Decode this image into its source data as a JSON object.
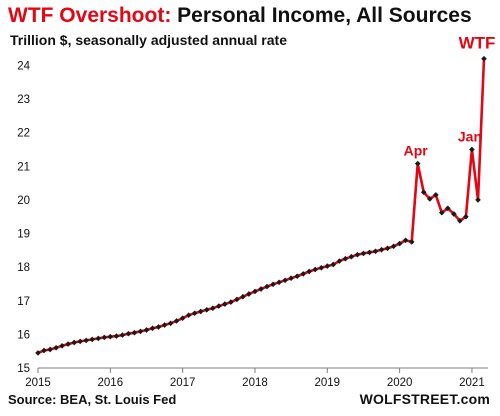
{
  "header": {
    "title_accent": "WTF Overshoot:",
    "title_rest": " Personal Income, All Sources",
    "subtitle": "Trillion $, seasonally adjusted annual rate"
  },
  "footer": {
    "source": "Source: BEA, St. Louis Fed",
    "brand": "WOLFSTREET.com"
  },
  "colors": {
    "accent": "#e30613",
    "line": "#e30613",
    "markers": "#1a1a1a",
    "grid": "#d9d9d9",
    "text": "#111111"
  },
  "chart_data": {
    "type": "line",
    "title": "WTF Overshoot: Personal Income, All Sources",
    "subtitle": "Trillion $, seasonally adjusted annual rate",
    "xlabel": "",
    "ylabel": "",
    "x_ticks": [
      "2015",
      "2016",
      "2017",
      "2018",
      "2019",
      "2020",
      "2021"
    ],
    "y_ticks": [
      15,
      16,
      17,
      18,
      19,
      20,
      21,
      22,
      23,
      24
    ],
    "xlim": [
      "2015-01",
      "2021-03"
    ],
    "ylim": [
      15,
      24.4
    ],
    "grid": false,
    "legend": "none",
    "annotations": [
      {
        "text": "Apr",
        "x": "2020-04",
        "y": 21.08
      },
      {
        "text": "Jan",
        "x": "2021-01",
        "y": 21.5
      },
      {
        "text": "WTF",
        "x": "2021-03",
        "y": 24.2
      }
    ],
    "series": [
      {
        "x": [
          "2015-01",
          "2015-02",
          "2015-03",
          "2015-04",
          "2015-05",
          "2015-06",
          "2015-07",
          "2015-08",
          "2015-09",
          "2015-10",
          "2015-11",
          "2015-12",
          "2016-01",
          "2016-02",
          "2016-03",
          "2016-04",
          "2016-05",
          "2016-06",
          "2016-07",
          "2016-08",
          "2016-09",
          "2016-10",
          "2016-11",
          "2016-12",
          "2017-01",
          "2017-02",
          "2017-03",
          "2017-04",
          "2017-05",
          "2017-06",
          "2017-07",
          "2017-08",
          "2017-09",
          "2017-10",
          "2017-11",
          "2017-12",
          "2018-01",
          "2018-02",
          "2018-03",
          "2018-04",
          "2018-05",
          "2018-06",
          "2018-07",
          "2018-08",
          "2018-09",
          "2018-10",
          "2018-11",
          "2018-12",
          "2019-01",
          "2019-02",
          "2019-03",
          "2019-04",
          "2019-05",
          "2019-06",
          "2019-07",
          "2019-08",
          "2019-09",
          "2019-10",
          "2019-11",
          "2019-12",
          "2020-01",
          "2020-02",
          "2020-03",
          "2020-04",
          "2020-05",
          "2020-06",
          "2020-07",
          "2020-08",
          "2020-09",
          "2020-10",
          "2020-11",
          "2020-12",
          "2021-01",
          "2021-02",
          "2021-03"
        ],
        "values": [
          15.45,
          15.52,
          15.55,
          15.6,
          15.66,
          15.71,
          15.76,
          15.79,
          15.82,
          15.85,
          15.88,
          15.91,
          15.93,
          15.95,
          15.98,
          16.02,
          16.05,
          16.09,
          16.13,
          16.18,
          16.22,
          16.28,
          16.33,
          16.4,
          16.48,
          16.57,
          16.63,
          16.68,
          16.73,
          16.78,
          16.84,
          16.9,
          16.96,
          17.04,
          17.12,
          17.2,
          17.28,
          17.35,
          17.42,
          17.49,
          17.55,
          17.61,
          17.67,
          17.73,
          17.8,
          17.87,
          17.93,
          17.98,
          18.03,
          18.08,
          18.18,
          18.25,
          18.31,
          18.37,
          18.41,
          18.44,
          18.47,
          18.52,
          18.56,
          18.62,
          18.7,
          18.8,
          18.75,
          21.08,
          20.23,
          20.03,
          20.15,
          19.62,
          19.75,
          19.58,
          19.38,
          19.5,
          21.5,
          20.0,
          24.2
        ]
      }
    ]
  }
}
